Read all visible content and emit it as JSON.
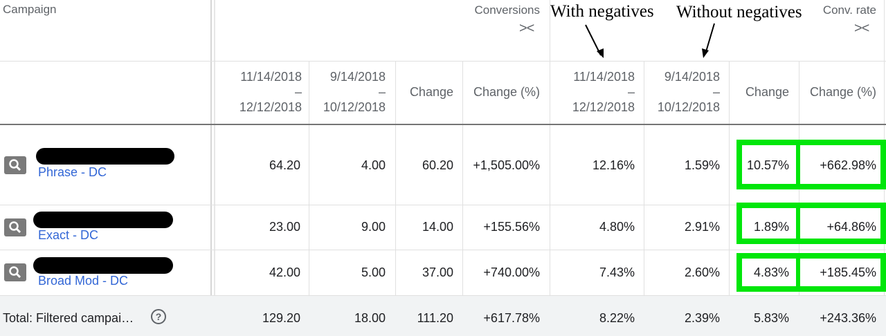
{
  "header": {
    "campaign": "Campaign",
    "group_conversions": "Conversions",
    "group_conv_rate": "Conv. rate",
    "collapse_glyph": "><"
  },
  "annotations": {
    "with_negatives": "With negatives",
    "without_negatives": "Without negatives"
  },
  "subheaders": {
    "period1_start": "11/14/2018",
    "period1_end": "12/12/2018",
    "period2_start": "9/14/2018",
    "period2_end": "10/12/2018",
    "dash": "–",
    "change": "Change",
    "change_pct": "Change (%)"
  },
  "rows": [
    {
      "name": "Phrase - DC",
      "conv_p1": "64.20",
      "conv_p2": "4.00",
      "conv_change": "60.20",
      "conv_change_pct": "+1,505.00%",
      "rate_p1": "12.16%",
      "rate_p2": "1.59%",
      "rate_change": "10.57%",
      "rate_change_pct": "+662.98%"
    },
    {
      "name": "Exact - DC",
      "conv_p1": "23.00",
      "conv_p2": "9.00",
      "conv_change": "14.00",
      "conv_change_pct": "+155.56%",
      "rate_p1": "4.80%",
      "rate_p2": "2.91%",
      "rate_change": "1.89%",
      "rate_change_pct": "+64.86%"
    },
    {
      "name": "Broad Mod - DC",
      "conv_p1": "42.00",
      "conv_p2": "5.00",
      "conv_change": "37.00",
      "conv_change_pct": "+740.00%",
      "rate_p1": "7.43%",
      "rate_p2": "2.60%",
      "rate_change": "4.83%",
      "rate_change_pct": "+185.45%"
    }
  ],
  "total": {
    "label": "Total: Filtered campai…",
    "help_glyph": "?",
    "conv_p1": "129.20",
    "conv_p2": "18.00",
    "conv_change": "111.20",
    "conv_change_pct": "+617.78%",
    "rate_p1": "8.22%",
    "rate_p2": "2.39%",
    "rate_change": "5.83%",
    "rate_change_pct": "+243.36%"
  },
  "colors": {
    "highlight": "#00e60a",
    "link": "#3367d6",
    "redaction": "#000000"
  }
}
